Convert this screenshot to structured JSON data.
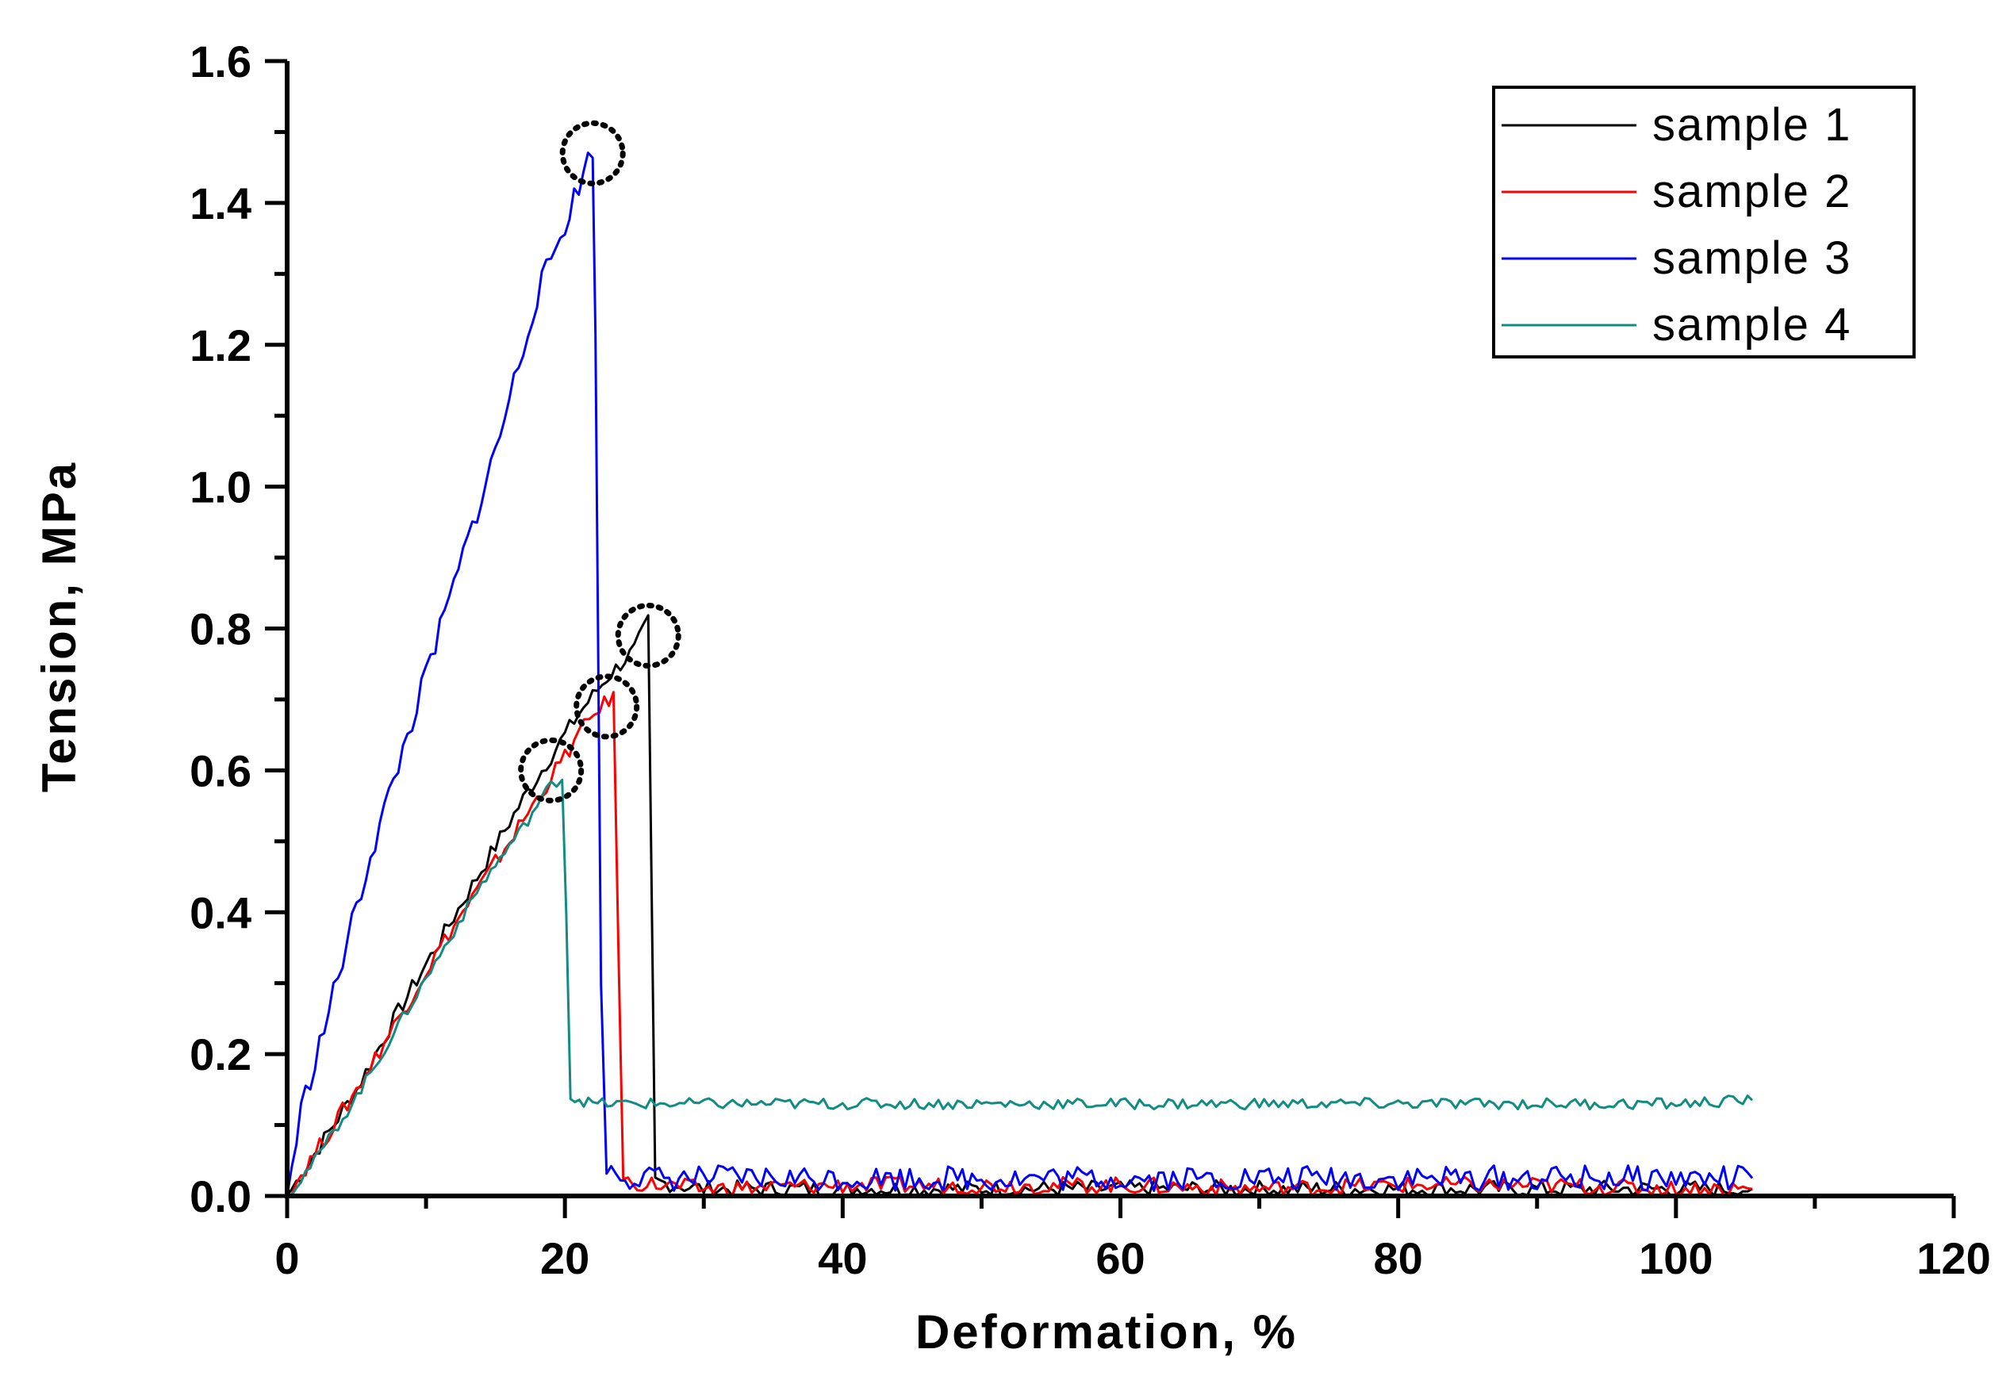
{
  "chart_data": {
    "type": "line",
    "xlabel": "Deformation, %",
    "ylabel": "Tension, MPa",
    "xlim": [
      0,
      120
    ],
    "ylim": [
      0,
      1.6
    ],
    "x_ticks": [
      "0",
      "20",
      "40",
      "60",
      "80",
      "100",
      "120"
    ],
    "y_ticks": [
      "0.0",
      "0.2",
      "0.4",
      "0.6",
      "0.8",
      "1.0",
      "1.2",
      "1.4",
      "1.6"
    ],
    "grid": false,
    "legend": "top-right",
    "series": [
      {
        "name": "sample 1",
        "color": "#000000",
        "points": [
          [
            0,
            0
          ],
          [
            2,
            0.06
          ],
          [
            5,
            0.15
          ],
          [
            8,
            0.26
          ],
          [
            11,
            0.36
          ],
          [
            14,
            0.46
          ],
          [
            17,
            0.56
          ],
          [
            19,
            0.62
          ],
          [
            21,
            0.68
          ],
          [
            23,
            0.73
          ],
          [
            25,
            0.77
          ],
          [
            26,
            0.81
          ],
          [
            26.5,
            0.02
          ],
          [
            30,
            0.01
          ],
          [
            40,
            0.01
          ],
          [
            50,
            0.01
          ],
          [
            60,
            0.01
          ],
          [
            70,
            0.01
          ],
          [
            80,
            0.01
          ],
          [
            90,
            0.01
          ],
          [
            100,
            0.01
          ],
          [
            105.5,
            0.01
          ]
        ],
        "noise": 0.012
      },
      {
        "name": "sample 2",
        "color": "#ff0000",
        "points": [
          [
            0,
            0
          ],
          [
            2,
            0.06
          ],
          [
            5,
            0.15
          ],
          [
            8,
            0.25
          ],
          [
            11,
            0.35
          ],
          [
            14,
            0.44
          ],
          [
            17,
            0.53
          ],
          [
            19,
            0.59
          ],
          [
            21,
            0.65
          ],
          [
            22.5,
            0.69
          ],
          [
            23.5,
            0.7
          ],
          [
            24.2,
            0.02
          ],
          [
            30,
            0.01
          ],
          [
            40,
            0.015
          ],
          [
            50,
            0.015
          ],
          [
            60,
            0.015
          ],
          [
            70,
            0.01
          ],
          [
            80,
            0.015
          ],
          [
            90,
            0.015
          ],
          [
            100,
            0.01
          ],
          [
            105.5,
            0.01
          ]
        ],
        "noise": 0.012
      },
      {
        "name": "sample 3",
        "color": "#0000ff",
        "points": [
          [
            0,
            0
          ],
          [
            1,
            0.12
          ],
          [
            3,
            0.26
          ],
          [
            6,
            0.48
          ],
          [
            9,
            0.67
          ],
          [
            12,
            0.86
          ],
          [
            15,
            1.05
          ],
          [
            18,
            1.27
          ],
          [
            20,
            1.37
          ],
          [
            22,
            1.48
          ],
          [
            22.2,
            1.2
          ],
          [
            22.6,
            0.3
          ],
          [
            23,
            0.04
          ],
          [
            25,
            0.025
          ],
          [
            30,
            0.025
          ],
          [
            40,
            0.025
          ],
          [
            50,
            0.025
          ],
          [
            60,
            0.025
          ],
          [
            70,
            0.025
          ],
          [
            80,
            0.025
          ],
          [
            90,
            0.025
          ],
          [
            100,
            0.025
          ],
          [
            105.5,
            0.025
          ]
        ],
        "noise": 0.018
      },
      {
        "name": "sample 4",
        "color": "#118c82",
        "points": [
          [
            0,
            0
          ],
          [
            2,
            0.05
          ],
          [
            5,
            0.14
          ],
          [
            8,
            0.24
          ],
          [
            11,
            0.34
          ],
          [
            14,
            0.44
          ],
          [
            17,
            0.52
          ],
          [
            19,
            0.58
          ],
          [
            19.8,
            0.59
          ],
          [
            20.1,
            0.4
          ],
          [
            20.4,
            0.14
          ],
          [
            22,
            0.13
          ],
          [
            30,
            0.13
          ],
          [
            40,
            0.13
          ],
          [
            50,
            0.13
          ],
          [
            60,
            0.13
          ],
          [
            70,
            0.13
          ],
          [
            80,
            0.13
          ],
          [
            90,
            0.13
          ],
          [
            100,
            0.13
          ],
          [
            105.5,
            0.135
          ]
        ],
        "noise": 0.008
      }
    ],
    "annotations": [
      {
        "type": "dotted-circle",
        "x": 22,
        "y": 1.47
      },
      {
        "type": "dotted-circle",
        "x": 26,
        "y": 0.79
      },
      {
        "type": "dotted-circle",
        "x": 23,
        "y": 0.69
      },
      {
        "type": "dotted-circle",
        "x": 19,
        "y": 0.6
      }
    ]
  }
}
